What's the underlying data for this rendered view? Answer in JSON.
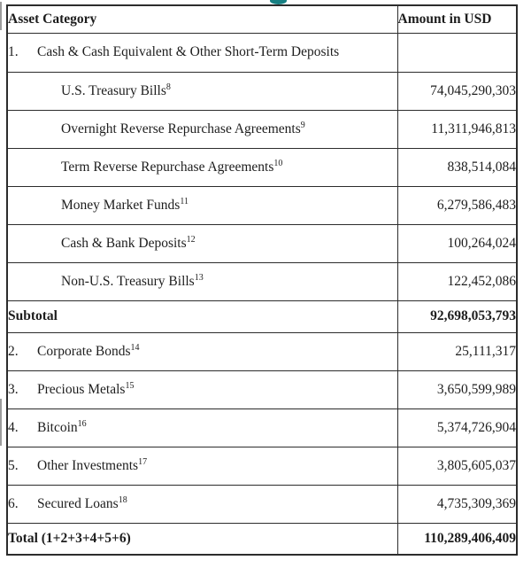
{
  "page": {
    "accent_color": "#177f82",
    "decoration": "descender of cropped teal heading above table"
  },
  "table": {
    "header": {
      "asset_category": "Asset Category",
      "amount_in_usd": "Amount in USD"
    },
    "rows": [
      {
        "num": "1.",
        "label": "Cash & Cash Equivalent & Other Short-Term Deposits",
        "amount": ""
      },
      {
        "label": "U.S. Treasury Bills",
        "sup": "8",
        "amount": "74,045,290,303"
      },
      {
        "label": "Overnight Reverse Repurchase Agreements",
        "sup": "9",
        "amount": "11,311,946,813"
      },
      {
        "label": "Term Reverse Repurchase Agreements",
        "sup": "10",
        "amount": "838,514,084"
      },
      {
        "label": "Money Market Funds",
        "sup": "11",
        "amount": "6,279,586,483"
      },
      {
        "label": "Cash & Bank Deposits",
        "sup": "12",
        "amount": "100,264,024"
      },
      {
        "label": "Non-U.S. Treasury Bills",
        "sup": "13",
        "amount": "122,452,086"
      },
      {
        "label": "Subtotal",
        "amount": "92,698,053,793"
      },
      {
        "num": "2.",
        "label": "Corporate Bonds",
        "sup": "14",
        "amount": "25,111,317"
      },
      {
        "num": "3.",
        "label": "Precious Metals",
        "sup": "15",
        "amount": "3,650,599,989"
      },
      {
        "num": "4.",
        "label": "Bitcoin",
        "sup": "16",
        "amount": "5,374,726,904"
      },
      {
        "num": "5.",
        "label": "Other Investments",
        "sup": "17",
        "amount": "3,805,605,037"
      },
      {
        "num": "6.",
        "label": "Secured Loans",
        "sup": "18",
        "amount": "4,735,309,369"
      },
      {
        "label": "Total (1+2+3+4+5+6)",
        "amount": "110,289,406,409"
      }
    ]
  }
}
